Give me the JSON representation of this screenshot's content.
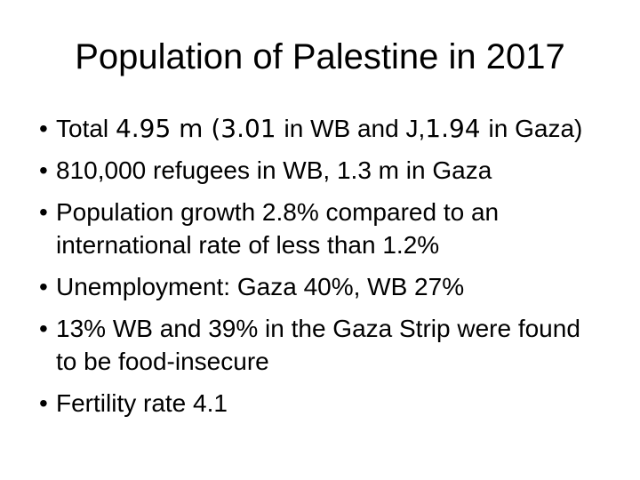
{
  "slide": {
    "kind": "presentation-slide",
    "background_color": "#ffffff",
    "text_color": "#000000",
    "title": "Population of Palestine in 2017"
  },
  "glyphs": {
    "bullet": "•"
  },
  "bullets": [
    {
      "lines": [
        [
          {
            "text": "Total ",
            "style": "base"
          },
          {
            "text": "4.95 m (3.01 ",
            "style": "alt"
          },
          {
            "text": "in WB and J,",
            "style": "base"
          },
          {
            "text": "1.94 ",
            "style": "alt"
          },
          {
            "text": "in Gaza)",
            "style": "base"
          }
        ]
      ]
    },
    {
      "lines": [
        [
          {
            "text": "810,000 refugees in WB, 1.3 m in Gaza",
            "style": "base"
          }
        ]
      ]
    },
    {
      "lines": [
        [
          {
            "text": "Population growth 2.8% compared to an",
            "style": "base"
          }
        ],
        [
          {
            "text": "international rate of less than 1.2%",
            "style": "base"
          }
        ]
      ]
    },
    {
      "lines": [
        [
          {
            "text": "Unemployment: Gaza 40%, WB 27%",
            "style": "base"
          }
        ]
      ]
    },
    {
      "lines": [
        [
          {
            "text": "13% WB and 39% in the Gaza Strip were found",
            "style": "base"
          }
        ],
        [
          {
            "text": "to be food-insecure",
            "style": "base"
          }
        ]
      ]
    },
    {
      "lines": [
        [
          {
            "text": "Fertility rate 4.1",
            "style": "base"
          }
        ]
      ]
    }
  ]
}
